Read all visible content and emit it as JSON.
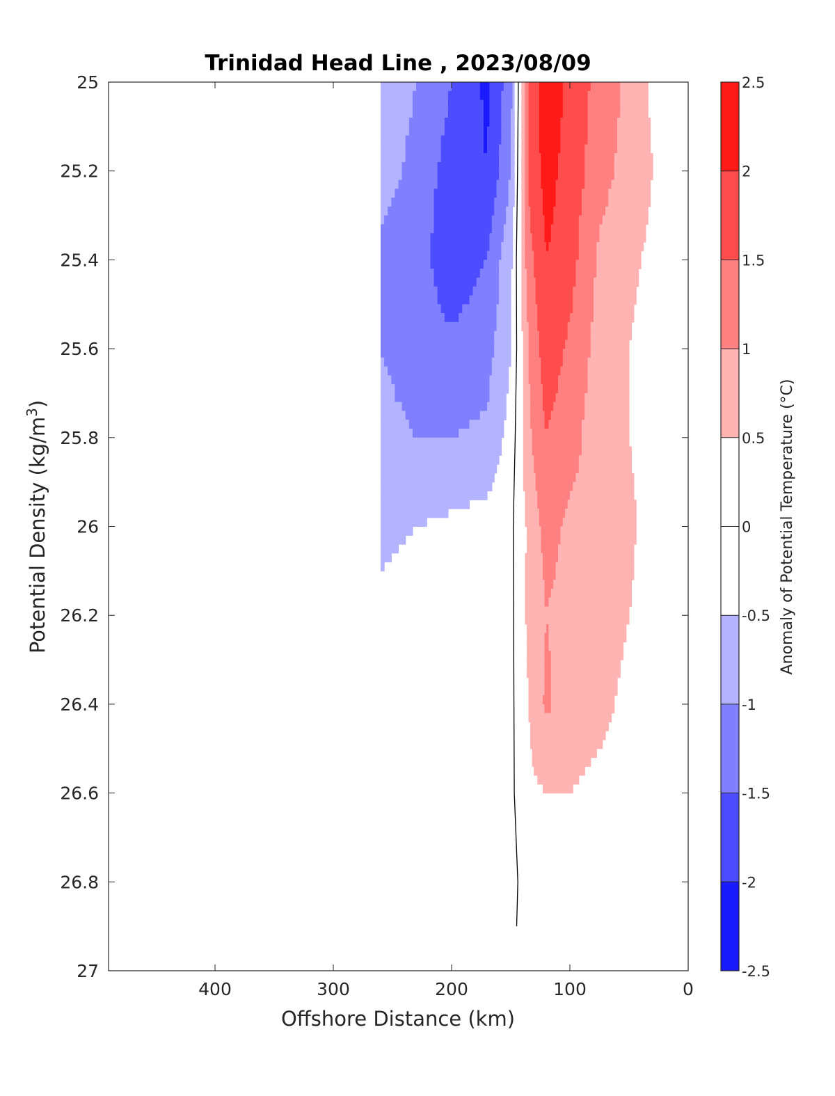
{
  "chart_data": {
    "type": "heatmap",
    "title": "Trinidad Head Line , 2023/08/09",
    "xlabel": "Offshore Distance (km)",
    "ylabel": "Potential Density (kg/m",
    "ylabel_sup": "3",
    "ylabel_end": ")",
    "colorbar_label": "Anomaly of Potential Temperature (°C)",
    "xlim": [
      490,
      0
    ],
    "ylim": [
      25,
      27
    ],
    "x_reversed": true,
    "y_reversed": true,
    "x_ticks": [
      400,
      300,
      200,
      100,
      0
    ],
    "x_tick_labels": [
      "400",
      "300",
      "200",
      "100",
      "0"
    ],
    "y_ticks": [
      25,
      25.2,
      25.4,
      25.6,
      25.8,
      26,
      26.2,
      26.4,
      26.6,
      26.8,
      27
    ],
    "y_tick_labels": [
      "25",
      "25.2",
      "25.4",
      "25.6",
      "25.8",
      "26",
      "26.2",
      "26.4",
      "26.6",
      "26.8",
      "27"
    ],
    "colorbar": {
      "range": [
        -2.5,
        2.5
      ],
      "step": 0.25,
      "tick_values": [
        2.5,
        2,
        1.5,
        1,
        0.5,
        0,
        -0.5,
        -1,
        -1.5,
        -2,
        -2.5
      ],
      "tick_labels": [
        "2.5",
        "2",
        "1.5",
        "1",
        "0.5",
        "0",
        "-0.5",
        "-1",
        "-1.5",
        "-2",
        "-2.5"
      ],
      "negative_color": "#0000ff",
      "positive_color": "#ff0000",
      "zero_color": "#ffffff"
    },
    "grid": {
      "x": [
        260,
        230,
        200,
        170,
        150,
        135,
        120,
        100,
        75,
        50,
        30,
        15
      ],
      "y": [
        25,
        25.2,
        25.4,
        25.6,
        25.8,
        26,
        26.2,
        26.4,
        26.6,
        26.8,
        26.9
      ],
      "anomaly": [
        [
          -0.5,
          -1.0,
          -1.5,
          -2.1,
          -1.2,
          1.6,
          2.3,
          1.9,
          1.3,
          0.9,
          0.4,
          0.2
        ],
        [
          -0.7,
          -1.2,
          -1.7,
          -2.0,
          -1.0,
          1.6,
          2.2,
          1.8,
          1.2,
          0.8,
          0.5,
          0.3
        ],
        [
          -1.2,
          -1.3,
          -1.8,
          -1.5,
          -0.6,
          1.3,
          2.0,
          1.7,
          0.9,
          0.6,
          0.4,
          0.1
        ],
        [
          -1.0,
          -1.3,
          -1.4,
          -1.2,
          -0.5,
          1.0,
          1.8,
          1.4,
          0.8,
          0.5,
          0.3,
          0.1
        ],
        [
          -0.8,
          -1.0,
          -1.0,
          -0.9,
          -0.3,
          0.9,
          1.5,
          1.2,
          0.7,
          0.5,
          0.3,
          0.4
        ],
        [
          -0.6,
          -0.5,
          -0.4,
          -0.3,
          -0.1,
          0.6,
          1.2,
          0.9,
          0.8,
          0.6,
          0.3,
          0.3
        ],
        [
          -0.4,
          -0.3,
          -0.2,
          -0.1,
          0.0,
          0.6,
          1.0,
          0.8,
          0.7,
          0.5,
          0.2,
          0.0
        ],
        [
          -0.3,
          -0.2,
          -0.1,
          -0.3,
          0.0,
          0.5,
          1.1,
          0.7,
          0.6,
          0.4,
          0.2,
          0.0
        ],
        [
          -0.4,
          -0.3,
          -0.3,
          -0.3,
          -0.1,
          0.4,
          0.5,
          0.5,
          0.4,
          0.3,
          0.1,
          0.0
        ],
        [
          -0.3,
          -0.3,
          -0.3,
          0.0,
          -0.2,
          0.3,
          0.4,
          0.3,
          0.3,
          0.1,
          0.0,
          0.0
        ],
        [
          -0.3,
          -0.5,
          -0.2,
          0.1,
          -0.1,
          0.2,
          0.4,
          0.3,
          0.0,
          0.0,
          0.0,
          0.0
        ]
      ]
    }
  }
}
